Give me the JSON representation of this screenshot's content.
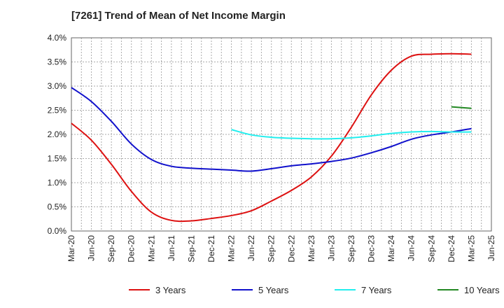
{
  "chart_data": {
    "type": "line",
    "title": "[7261]  Trend of Mean of Net Income Margin",
    "xlabel": "",
    "ylabel": "",
    "x_ticks": [
      "Mar-20",
      "Jun-20",
      "Sep-20",
      "Dec-20",
      "Mar-21",
      "Jun-21",
      "Sep-21",
      "Dec-21",
      "Mar-22",
      "Jun-22",
      "Sep-22",
      "Dec-22",
      "Mar-23",
      "Jun-23",
      "Sep-23",
      "Dec-23",
      "Mar-24",
      "Jun-24",
      "Sep-24",
      "Dec-24",
      "Mar-25",
      "Jun-25"
    ],
    "y_ticks": [
      "0.0%",
      "0.5%",
      "1.0%",
      "1.5%",
      "2.0%",
      "2.5%",
      "3.0%",
      "3.5%",
      "4.0%"
    ],
    "ylim": [
      0,
      4.0
    ],
    "grid": true,
    "legend_position": "bottom",
    "series": [
      {
        "name": "3 Years",
        "color": "#dd1111",
        "x": [
          "Mar-20",
          "Jun-20",
          "Sep-20",
          "Dec-20",
          "Mar-21",
          "Jun-21",
          "Sep-21",
          "Dec-21",
          "Mar-22",
          "Jun-22",
          "Sep-22",
          "Dec-22",
          "Mar-23",
          "Jun-23",
          "Sep-23",
          "Dec-23",
          "Mar-24",
          "Jun-24",
          "Sep-24",
          "Dec-24",
          "Mar-25"
        ],
        "values": [
          2.23,
          1.88,
          1.38,
          0.82,
          0.39,
          0.22,
          0.21,
          0.26,
          0.32,
          0.42,
          0.62,
          0.84,
          1.12,
          1.55,
          2.15,
          2.82,
          3.33,
          3.62,
          3.66,
          3.67,
          3.66
        ]
      },
      {
        "name": "5 Years",
        "color": "#1111cc",
        "x": [
          "Mar-20",
          "Jun-20",
          "Sep-20",
          "Dec-20",
          "Mar-21",
          "Jun-21",
          "Sep-21",
          "Dec-21",
          "Mar-22",
          "Jun-22",
          "Sep-22",
          "Dec-22",
          "Mar-23",
          "Jun-23",
          "Sep-23",
          "Dec-23",
          "Mar-24",
          "Jun-24",
          "Sep-24",
          "Dec-24",
          "Mar-25"
        ],
        "values": [
          2.97,
          2.68,
          2.27,
          1.8,
          1.48,
          1.34,
          1.3,
          1.28,
          1.26,
          1.24,
          1.29,
          1.35,
          1.39,
          1.44,
          1.51,
          1.62,
          1.75,
          1.9,
          1.99,
          2.05,
          2.12
        ]
      },
      {
        "name": "7 Years",
        "color": "#22eeee",
        "x": [
          "Mar-22",
          "Jun-22",
          "Sep-22",
          "Dec-22",
          "Mar-23",
          "Jun-23",
          "Sep-23",
          "Dec-23",
          "Mar-24",
          "Jun-24",
          "Sep-24",
          "Dec-24",
          "Mar-25"
        ],
        "values": [
          2.1,
          1.99,
          1.94,
          1.92,
          1.91,
          1.91,
          1.93,
          1.97,
          2.02,
          2.05,
          2.06,
          2.05,
          2.05
        ]
      },
      {
        "name": "10 Years",
        "color": "#228822",
        "x": [
          "Dec-24",
          "Mar-25"
        ],
        "values": [
          2.57,
          2.54
        ]
      }
    ]
  }
}
